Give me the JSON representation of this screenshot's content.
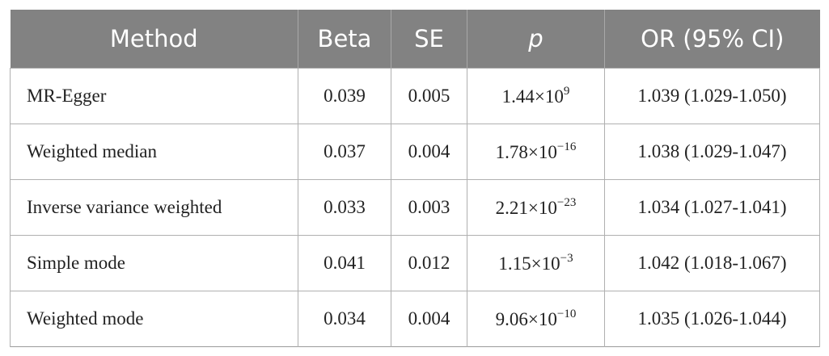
{
  "table": {
    "header": [
      "Method",
      "Beta",
      "SE",
      "p",
      "OR (95% CI)"
    ],
    "rows": [
      [
        "MR-Egger",
        "0.039",
        "0.005",
        {
          "base": "1.44×10",
          "exp": "9"
        },
        "1.039 (1.029-1.050)"
      ],
      [
        "Weighted median",
        "0.037",
        "0.004",
        {
          "base": "1.78×10",
          "exp": "−16"
        },
        "1.038 (1.029-1.047)"
      ],
      [
        "Inverse variance weighted",
        "0.033",
        "0.003",
        {
          "base": "2.21×10",
          "exp": "−23"
        },
        "1.034 (1.027-1.041)"
      ],
      [
        "Simple mode",
        "0.041",
        "0.012",
        {
          "base": "1.15×10",
          "exp": "−3"
        },
        "1.042 (1.018-1.067)"
      ],
      [
        "Weighted mode",
        "0.034",
        "0.004",
        {
          "base": "9.06×10",
          "exp": "−10"
        },
        "1.035 (1.026-1.044)"
      ]
    ]
  }
}
